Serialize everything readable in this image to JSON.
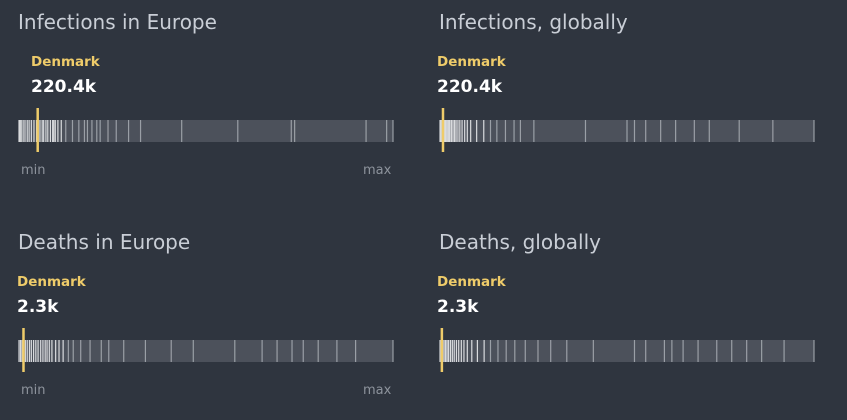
{
  "colors": {
    "background": "#2f353f",
    "track": "#4c515b",
    "tick": "#a3a7ae",
    "tick_bright": "#e9eaec",
    "highlight": "#efcc6a",
    "title": "#c9ced6",
    "axis_label": "#8d939c"
  },
  "chart_data": [
    {
      "type": "strip",
      "title": "Infections in Europe",
      "highlight": {
        "name": "Denmark",
        "value_label": "220.4k",
        "position": 0.05
      },
      "xmin_label": "min",
      "xmax_label": "max",
      "scale": "normalized 0 (min) to 1 (max)",
      "points": [
        0.0,
        0.003,
        0.006,
        0.011,
        0.016,
        0.022,
        0.027,
        0.033,
        0.04,
        0.047,
        0.056,
        0.062,
        0.066,
        0.072,
        0.077,
        0.084,
        0.09,
        0.093,
        0.097,
        0.104,
        0.113,
        0.125,
        0.143,
        0.16,
        0.175,
        0.183,
        0.195,
        0.208,
        0.217,
        0.238,
        0.26,
        0.293,
        0.325,
        0.435,
        0.585,
        0.728,
        0.737,
        0.928,
        0.983,
        1.0
      ]
    },
    {
      "type": "strip",
      "title": "Infections, globally",
      "highlight": {
        "name": "Denmark",
        "value_label": "220.4k",
        "position": 0.008
      },
      "xmin_label": "",
      "xmax_label": "",
      "scale": "normalized 0 (min) to 1 (max)",
      "points": [
        0.0,
        0.003,
        0.006,
        0.009,
        0.012,
        0.015,
        0.018,
        0.021,
        0.024,
        0.027,
        0.031,
        0.035,
        0.039,
        0.043,
        0.048,
        0.053,
        0.059,
        0.066,
        0.073,
        0.082,
        0.098,
        0.117,
        0.135,
        0.152,
        0.175,
        0.198,
        0.215,
        0.251,
        0.389,
        0.5,
        0.52,
        0.55,
        0.59,
        0.63,
        0.68,
        0.72,
        0.8,
        0.89,
        1.0
      ]
    },
    {
      "type": "strip",
      "title": "Deaths in Europe",
      "highlight": {
        "name": "Denmark",
        "value_label": "2.3k",
        "position": 0.012
      },
      "xmin_label": "min",
      "xmax_label": "max",
      "scale": "normalized 0 (min) to 1 (max)",
      "points": [
        0.0,
        0.004,
        0.008,
        0.012,
        0.017,
        0.022,
        0.028,
        0.033,
        0.039,
        0.045,
        0.051,
        0.058,
        0.064,
        0.07,
        0.075,
        0.081,
        0.088,
        0.098,
        0.107,
        0.118,
        0.132,
        0.145,
        0.165,
        0.19,
        0.22,
        0.24,
        0.28,
        0.338,
        0.407,
        0.466,
        0.577,
        0.65,
        0.69,
        0.73,
        0.76,
        0.8,
        0.85,
        0.9,
        1.0
      ]
    },
    {
      "type": "strip",
      "title": "Deaths, globally",
      "highlight": {
        "name": "Denmark",
        "value_label": "2.3k",
        "position": 0.005
      },
      "xmin_label": "",
      "xmax_label": "",
      "scale": "normalized 0 (min) to 1 (max)",
      "points": [
        0.0,
        0.004,
        0.007,
        0.011,
        0.015,
        0.019,
        0.023,
        0.028,
        0.033,
        0.038,
        0.044,
        0.05,
        0.057,
        0.064,
        0.073,
        0.085,
        0.1,
        0.118,
        0.135,
        0.155,
        0.177,
        0.2,
        0.228,
        0.262,
        0.296,
        0.339,
        0.41,
        0.52,
        0.55,
        0.6,
        0.62,
        0.65,
        0.69,
        0.74,
        0.78,
        0.82,
        0.86,
        0.92,
        1.0
      ]
    }
  ]
}
